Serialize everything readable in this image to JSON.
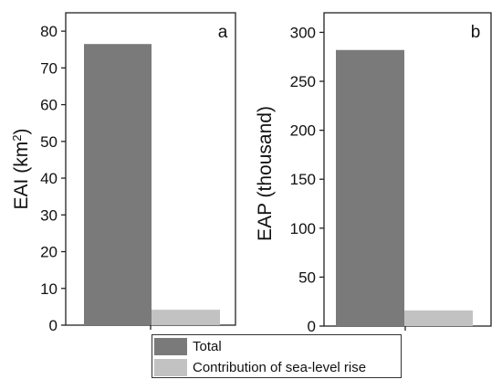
{
  "chart_data": [
    {
      "type": "bar",
      "panel_label": "a",
      "ylabel_main": "EAI (km",
      "ylabel_sup": "2",
      "ylabel_end": ")",
      "ylim": [
        0,
        85
      ],
      "ticks": [
        0,
        10,
        20,
        30,
        40,
        50,
        60,
        70,
        80
      ],
      "series": [
        {
          "name": "Total",
          "values": [
            76.5
          ]
        },
        {
          "name": "Contribution of sea-level rise",
          "values": [
            4.2
          ]
        }
      ]
    },
    {
      "type": "bar",
      "panel_label": "b",
      "ylabel_main": "EAP (thousand)",
      "ylim": [
        0,
        320
      ],
      "ticks": [
        0,
        50,
        100,
        150,
        200,
        250,
        300
      ],
      "series": [
        {
          "name": "Total",
          "values": [
            282
          ]
        },
        {
          "name": "Contribution of sea-level rise",
          "values": [
            16
          ]
        }
      ]
    }
  ],
  "legend": {
    "items": [
      {
        "label": "Total",
        "color": "#7a7a7a"
      },
      {
        "label": "Contribution of sea-level rise",
        "color": "#c2c2c2"
      }
    ]
  },
  "colors": {
    "total": "#7a7a7a",
    "slr": "#c2c2c2"
  }
}
